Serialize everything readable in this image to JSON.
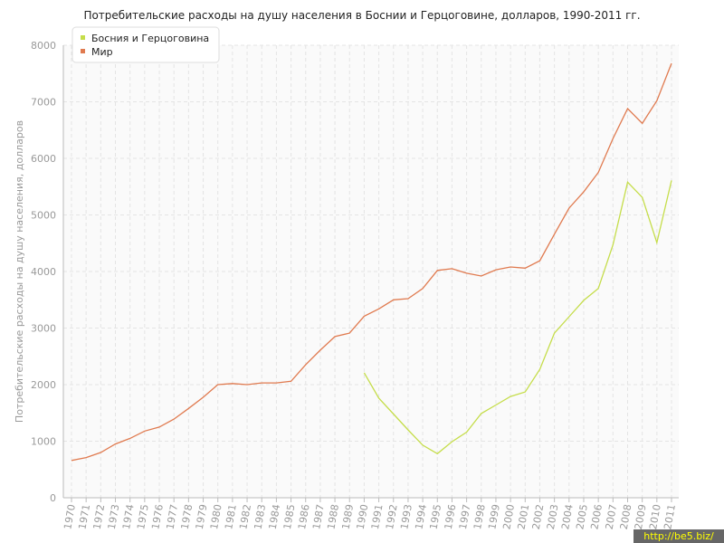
{
  "chart_data": {
    "type": "line",
    "title": "Потребительские расходы на душу населения в Боснии и Герцоговине, долларов, 1990-2011 гг.",
    "y_label": "Потребительские расходы на душу населения, долларов",
    "categories": [
      "1970",
      "1971",
      "1972",
      "1973",
      "1974",
      "1975",
      "1976",
      "1977",
      "1978",
      "1979",
      "1980",
      "1981",
      "1982",
      "1983",
      "1984",
      "1985",
      "1986",
      "1987",
      "1988",
      "1989",
      "1990",
      "1991",
      "1992",
      "1993",
      "1994",
      "1995",
      "1996",
      "1997",
      "1998",
      "1999",
      "2000",
      "2001",
      "2002",
      "2003",
      "2004",
      "2005",
      "2006",
      "2007",
      "2008",
      "2009",
      "2010",
      "2011"
    ],
    "series": [
      {
        "name": "Босния и Герцоговина",
        "color": "#c5dd4a",
        "values": [
          null,
          null,
          null,
          null,
          null,
          null,
          null,
          null,
          null,
          null,
          null,
          null,
          null,
          null,
          null,
          null,
          null,
          null,
          null,
          null,
          2210,
          1760,
          1480,
          1200,
          930,
          780,
          990,
          1160,
          1490,
          1640,
          1790,
          1870,
          2270,
          2910,
          3200,
          3490,
          3700,
          4470,
          5580,
          5310,
          4510,
          5610
        ]
      },
      {
        "name": "Мир",
        "color": "#e07a4f",
        "values": [
          660,
          710,
          800,
          950,
          1050,
          1180,
          1250,
          1390,
          1580,
          1776,
          2000,
          2020,
          2000,
          2030,
          2030,
          2060,
          2350,
          2610,
          2850,
          2910,
          3210,
          3340,
          3500,
          3520,
          3700,
          4020,
          4050,
          3970,
          3920,
          4030,
          4080,
          4060,
          4190,
          4660,
          5120,
          5410,
          5750,
          6350,
          6880,
          6620,
          7020,
          7680
        ]
      }
    ],
    "ylim": [
      0,
      8000
    ],
    "yticks": [
      0,
      1000,
      2000,
      3000,
      4000,
      5000,
      6000,
      7000,
      8000
    ],
    "grid": true,
    "legend": "top-left",
    "watermark": "http://be5.biz/"
  }
}
